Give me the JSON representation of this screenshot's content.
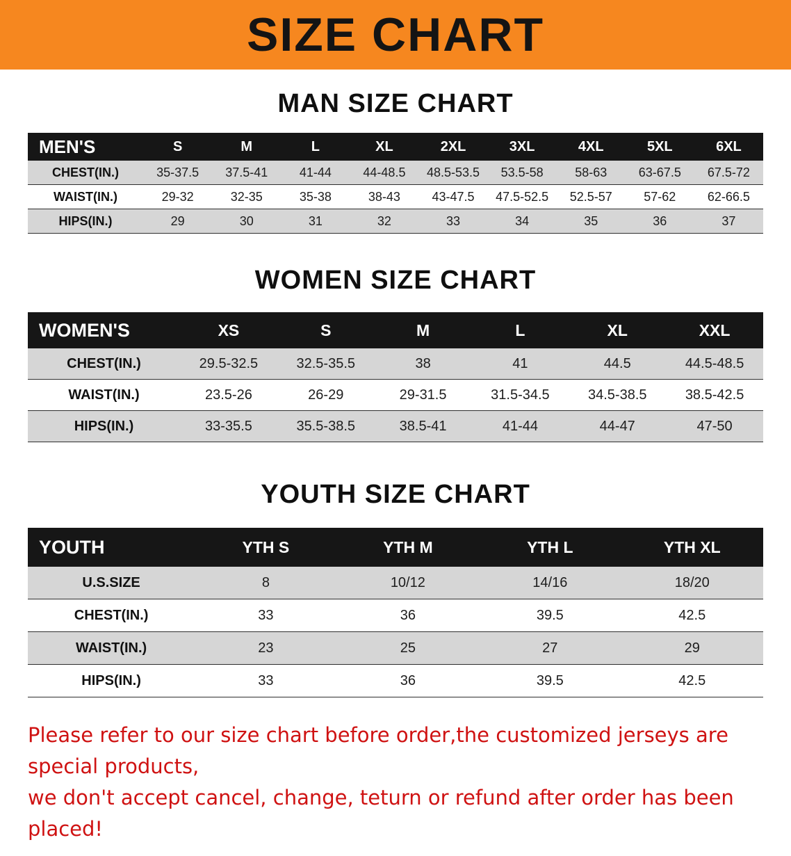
{
  "banner": {
    "title": "SIZE CHART"
  },
  "colors": {
    "banner_bg": "#f6871f",
    "header_bg": "#161616",
    "row_alt": "#d6d6d6",
    "note_red": "#cf1212"
  },
  "sections": {
    "men": {
      "heading": "MAN SIZE CHART",
      "table": {
        "header": [
          "MEN'S",
          "S",
          "M",
          "L",
          "XL",
          "2XL",
          "3XL",
          "4XL",
          "5XL",
          "6XL"
        ],
        "rows": [
          [
            "CHEST(IN.)",
            "35-37.5",
            "37.5-41",
            "41-44",
            "44-48.5",
            "48.5-53.5",
            "53.5-58",
            "58-63",
            "63-67.5",
            "67.5-72"
          ],
          [
            "WAIST(IN.)",
            "29-32",
            "32-35",
            "35-38",
            "38-43",
            "43-47.5",
            "47.5-52.5",
            "52.5-57",
            "57-62",
            "62-66.5"
          ],
          [
            "HIPS(IN.)",
            "29",
            "30",
            "31",
            "32",
            "33",
            "34",
            "35",
            "36",
            "37"
          ]
        ]
      }
    },
    "women": {
      "heading": "WOMEN SIZE CHART",
      "table": {
        "header": [
          "WOMEN'S",
          "XS",
          "S",
          "M",
          "L",
          "XL",
          "XXL"
        ],
        "rows": [
          [
            "CHEST(IN.)",
            "29.5-32.5",
            "32.5-35.5",
            "38",
            "41",
            "44.5",
            "44.5-48.5"
          ],
          [
            "WAIST(IN.)",
            "23.5-26",
            "26-29",
            "29-31.5",
            "31.5-34.5",
            "34.5-38.5",
            "38.5-42.5"
          ],
          [
            "HIPS(IN.)",
            "33-35.5",
            "35.5-38.5",
            "38.5-41",
            "41-44",
            "44-47",
            "47-50"
          ]
        ]
      }
    },
    "youth": {
      "heading": "YOUTH SIZE CHART",
      "table": {
        "header": [
          "YOUTH",
          "YTH S",
          "YTH M",
          "YTH L",
          "YTH XL"
        ],
        "rows": [
          [
            "U.S.SIZE",
            "8",
            "10/12",
            "14/16",
            "18/20"
          ],
          [
            "CHEST(IN.)",
            "33",
            "36",
            "39.5",
            "42.5"
          ],
          [
            "WAIST(IN.)",
            "23",
            "25",
            "27",
            "29"
          ],
          [
            "HIPS(IN.)",
            "33",
            "36",
            "39.5",
            "42.5"
          ]
        ]
      }
    }
  },
  "note": {
    "lines": [
      "Please refer to our size chart before order,the customized jerseys are special products,",
      "we don't accept cancel, change, teturn or refund after order has been placed!"
    ]
  }
}
